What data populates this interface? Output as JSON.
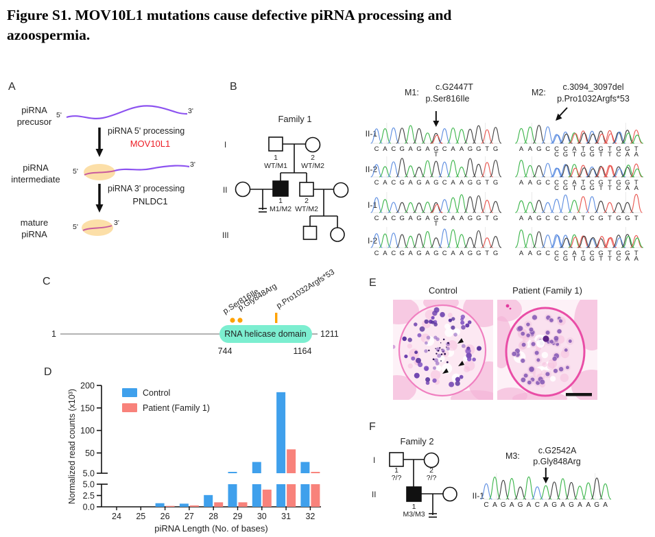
{
  "figure_title": {
    "line1": "Figure S1. MOV10L1 mutations cause defective piRNA processing and",
    "line2": "azoospermia."
  },
  "base_colors": {
    "A": "#3bb54a",
    "C": "#5b8ce0",
    "G": "#3f3f3f",
    "T": "#e8554f"
  },
  "panelA": {
    "label": "A",
    "stages": [
      {
        "text": "piRNA\nprecusor"
      },
      {
        "text": "piRNA\nintermediate"
      },
      {
        "text": "mature\npiRNA"
      }
    ],
    "steps": [
      {
        "process": "piRNA 5' processing",
        "factor": "MOV10L1",
        "factor_color": "#ed1c24"
      },
      {
        "process": "piRNA 3' processing",
        "factor": "PNLDC1",
        "factor_color": "#1a1a1a"
      }
    ],
    "end_labels": {
      "five": "5'",
      "three": "3'"
    },
    "rna_color": "#8c52f0",
    "body_fill": "#fcdfa8"
  },
  "panelB": {
    "label": "B",
    "family_title": "Family 1",
    "generation_labels": [
      "I",
      "II",
      "III"
    ],
    "individuals": {
      "I1": {
        "num": "1",
        "genotype": "WT/M1"
      },
      "I2": {
        "num": "2",
        "genotype": "WT/M2"
      },
      "II1": {
        "num": "1",
        "genotype": "M1/M2"
      },
      "II2": {
        "num": "2",
        "genotype": "WT/M2"
      }
    },
    "row_labels": [
      "II-1",
      "II-2",
      "I-1",
      "I-2"
    ],
    "m1": {
      "name": "M1:",
      "cdna": "c.G2447T",
      "protein": "p.Ser816Ile",
      "arrow_col": 8,
      "rows": [
        {
          "seq": "CACGAGAGCAAGGTG",
          "het_pos": 8,
          "het_base": "T"
        },
        {
          "seq": "CACGAGAGCAAGGTG"
        },
        {
          "seq": "CACGAGAGCAAGGTG",
          "het_pos": 8,
          "het_base": "T"
        },
        {
          "seq": "CACGAGAGCAAGGTG"
        }
      ]
    },
    "m2": {
      "name": "M2:",
      "cdna": "c.3094_3097del",
      "protein": "p.Pro1032Argfs*53",
      "arrow_col": 5,
      "rows": [
        {
          "seq": "AAGCCCATCGTGGT",
          "alt": "CGTGGTTCAA",
          "alt_start": 5
        },
        {
          "seq": "AAGCCCATCGTGGT",
          "alt": "CGTGGTTCAA",
          "alt_start": 5
        },
        {
          "seq": "AAGCCCATCGTGGT"
        },
        {
          "seq": "AAGCCCATCGTGGT",
          "alt": "CGTGGTTCAA",
          "alt_start": 5
        }
      ]
    }
  },
  "panelC": {
    "label": "C",
    "start": "1",
    "end": "1211",
    "domain_name": "RNA helicase domain",
    "domain_start": "744",
    "domain_end": "1164",
    "domain_fill": "#7ceed0",
    "marker_color": "#ffa200",
    "mutations": [
      {
        "label": "p.Ser816Ile",
        "marker": "dot"
      },
      {
        "label": "p.Gly848Arg",
        "marker": "dot"
      },
      {
        "label": "p.Pro1032Argfs*53",
        "marker": "bar"
      }
    ]
  },
  "panelD": {
    "label": "D"
  },
  "chart_data": {
    "type": "bar",
    "title": "",
    "categories": [
      "24",
      "25",
      "26",
      "27",
      "28",
      "29",
      "30",
      "31",
      "32"
    ],
    "series": [
      {
        "name": "Control",
        "color": "#3fa0ec",
        "values": [
          0,
          0,
          0.8,
          0.7,
          2.6,
          8,
          30,
          185,
          30
        ]
      },
      {
        "name": "Patient (Family 1)",
        "color": "#f8827b",
        "values": [
          0,
          0,
          0.2,
          0.3,
          1.0,
          1.0,
          3.8,
          58,
          8
        ]
      }
    ],
    "xlabel": "piRNA Length (No. of bases)",
    "ylabel": "Normalized read counts (x10³)",
    "axis_break": true,
    "lower_ylim": [
      0,
      5
    ],
    "lower_ticks": [
      "0.0",
      "2.5",
      "5.0"
    ],
    "upper_ylim": [
      5,
      200
    ],
    "upper_ticks": [
      "5.0",
      "50",
      "100",
      "150",
      "200"
    ],
    "legend_position": "top-left",
    "grid": false
  },
  "panelE": {
    "label": "E",
    "images": [
      {
        "title": "Control"
      },
      {
        "title": "Patient (Family 1)"
      }
    ]
  },
  "panelF": {
    "label": "F",
    "family_title": "Family 2",
    "generation_labels": [
      "I",
      "II"
    ],
    "individuals": {
      "I1": {
        "num": "1",
        "genotype": "?/?"
      },
      "I2": {
        "num": "2",
        "genotype": "?/?"
      },
      "II1": {
        "num": "1",
        "genotype": "M3/M3"
      }
    },
    "m3": {
      "name": "M3:",
      "cdna": "c.G2542A",
      "protein": "p.Gly848Arg",
      "row_label": "II-1",
      "seq": "CAGAGACAGAGAAGA",
      "arrow_col": 8
    }
  }
}
